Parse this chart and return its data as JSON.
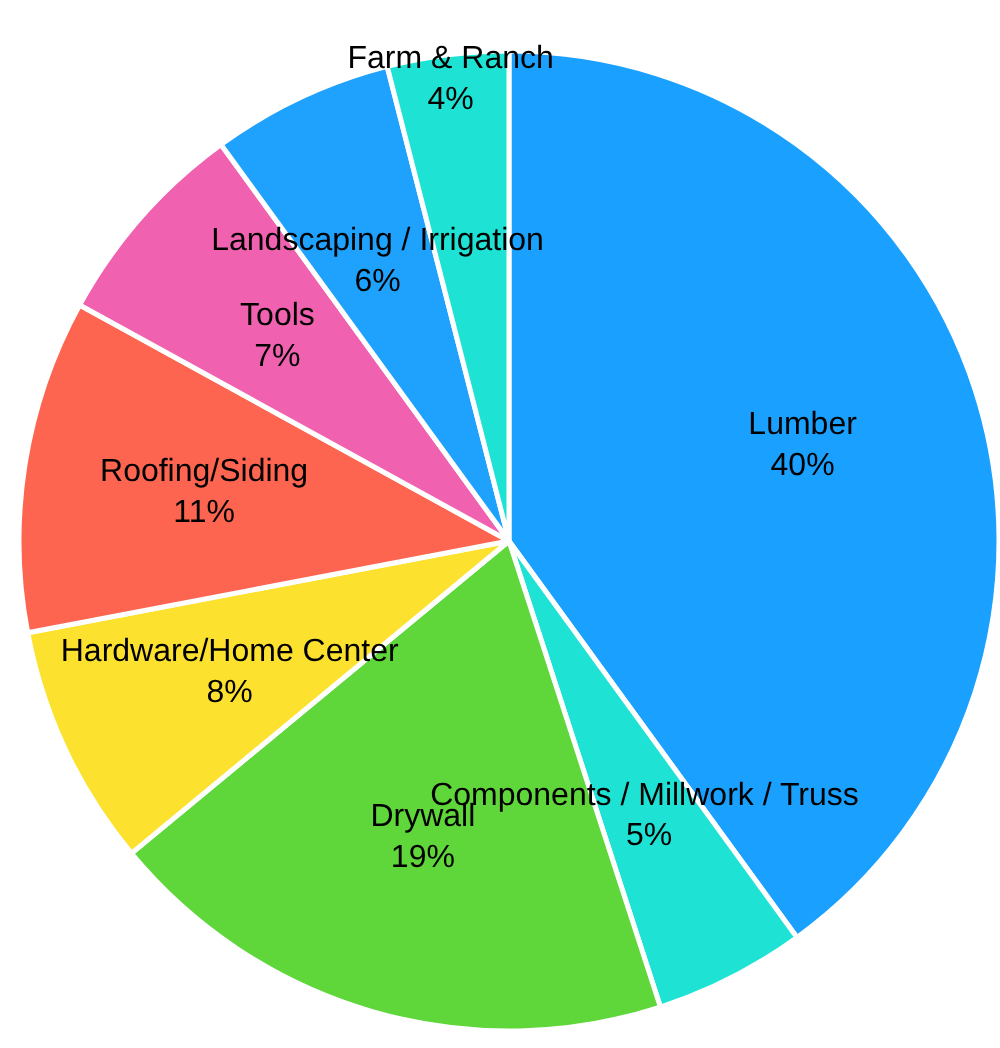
{
  "chart_data": {
    "type": "pie",
    "categories": [
      "Lumber",
      "Components /  Millwork / Truss",
      "Drywall",
      "Hardware/Home Center",
      "Roofing/Siding",
      "Tools",
      "Landscaping / Irrigation",
      "Farm & Ranch"
    ],
    "values": [
      40,
      5,
      19,
      8,
      11,
      7,
      6,
      4
    ],
    "value_labels": [
      "40%",
      "5%",
      "19%",
      "8%",
      "11%",
      "7%",
      "6%",
      "4%"
    ],
    "colors": [
      "#1aa0fe",
      "#1ee3d4",
      "#5fd63a",
      "#fde12f",
      "#fd6550",
      "#f062b0",
      "#1fa2fe",
      "#1ee3d4"
    ]
  }
}
